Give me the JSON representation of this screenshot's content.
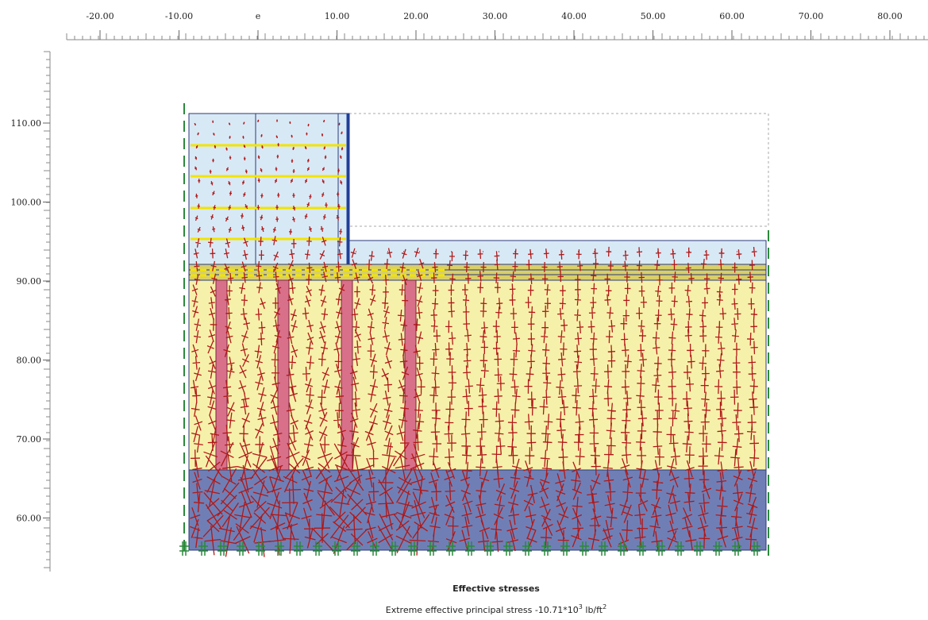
{
  "x_axis": {
    "ticks": [
      {
        "value": -20,
        "label": "-20.00"
      },
      {
        "value": -10,
        "label": "-10.00"
      },
      {
        "value": 0,
        "label": "e"
      },
      {
        "value": 10,
        "label": "10.00"
      },
      {
        "value": 20,
        "label": "20.00"
      },
      {
        "value": 30,
        "label": "30.00"
      },
      {
        "value": 40,
        "label": "40.00"
      },
      {
        "value": 50,
        "label": "50.00"
      },
      {
        "value": 60,
        "label": "60.00"
      },
      {
        "value": 70,
        "label": "70.00"
      },
      {
        "value": 80,
        "label": "80.00"
      }
    ]
  },
  "y_axis": {
    "ticks": [
      {
        "value": 110,
        "label": "110.00"
      },
      {
        "value": 100,
        "label": "100.00"
      },
      {
        "value": 90,
        "label": "90.00"
      },
      {
        "value": 80,
        "label": "80.00"
      },
      {
        "value": 70,
        "label": "70.00"
      },
      {
        "value": 60,
        "label": "60.00"
      }
    ]
  },
  "caption": {
    "title": "Effective stresses",
    "text": "Extreme effective principal stress -10.71*10",
    "exponent": "3",
    "unit": " lb/ft",
    "unit_exponent": "2"
  }
}
